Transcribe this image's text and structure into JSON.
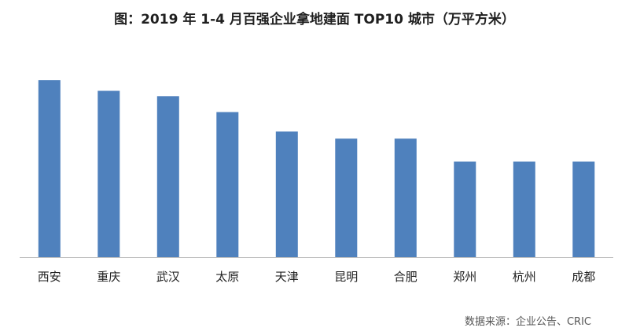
{
  "chart_data": {
    "type": "bar",
    "title": "图：2019 年 1-4 月百强企业拿地建面 TOP10 城市（万平方米）",
    "categories": [
      "西安",
      "重庆",
      "武汉",
      "太原",
      "天津",
      "昆明",
      "合肥",
      "郑州",
      "杭州",
      "成都"
    ],
    "values": [
      100,
      94,
      91,
      82,
      71,
      67,
      67,
      54,
      54,
      54
    ],
    "xlabel": "",
    "ylabel": "",
    "ylim": [
      0,
      100
    ],
    "grid": false,
    "bar_color": "#4f81bd",
    "axis_color": "#bfbfbf"
  },
  "source": "数据来源：企业公告、CRIC"
}
